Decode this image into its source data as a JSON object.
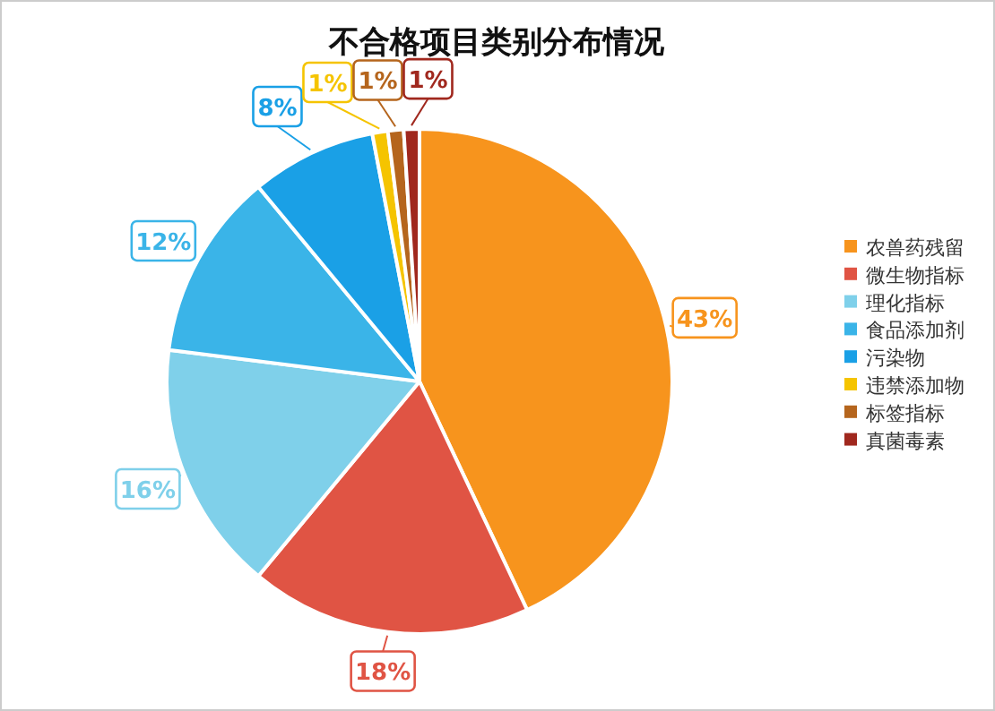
{
  "chart_data": {
    "type": "pie",
    "title": "不合格项目类别分布情况",
    "categories": [
      "农兽药残留",
      "微生物指标",
      "理化指标",
      "食品添加剂",
      "污染物",
      "违禁添加物",
      "标签指标",
      "真菌毒素"
    ],
    "values": [
      43,
      18,
      16,
      12,
      8,
      1,
      1,
      1
    ],
    "colors": [
      "#f7941d",
      "#e05444",
      "#7fd0ea",
      "#3ab4e8",
      "#1aa0e6",
      "#f5c400",
      "#b5651d",
      "#a0281e"
    ],
    "value_labels": [
      "43%",
      "18%",
      "16%",
      "12%",
      "8%",
      "1%",
      "1%",
      "1%"
    ],
    "legend": "right"
  }
}
